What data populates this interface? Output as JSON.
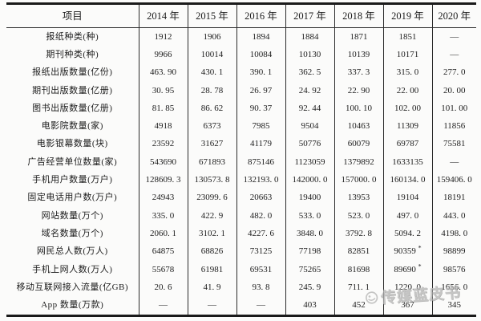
{
  "table": {
    "header": [
      "项目",
      "2014 年",
      "2015 年",
      "2016 年",
      "2017 年",
      "2018 年",
      "2019 年",
      "2020 年"
    ],
    "rows": [
      {
        "label": "报纸种类(种)",
        "values": [
          "1912",
          "1906",
          "1894",
          "1884",
          "1871",
          "1851",
          "—"
        ]
      },
      {
        "label": "期刊种类(种)",
        "values": [
          "9966",
          "10014",
          "10084",
          "10130",
          "10139",
          "10171",
          "—"
        ]
      },
      {
        "label": "报纸出版数量(亿份)",
        "values": [
          "463. 90",
          "430. 1",
          "390. 1",
          "362. 5",
          "337. 3",
          "315. 0",
          "277. 0"
        ]
      },
      {
        "label": "期刊出版数量(亿册)",
        "values": [
          "30. 95",
          "28. 78",
          "26. 97",
          "24. 92",
          "22. 90",
          "22. 00",
          "20. 00"
        ]
      },
      {
        "label": "图书出版数量(亿册)",
        "values": [
          "81. 85",
          "86. 62",
          "90. 37",
          "92. 44",
          "100. 10",
          "102. 00",
          "101. 00"
        ]
      },
      {
        "label": "电影院数量(家)",
        "values": [
          "4918",
          "6373",
          "7985",
          "9504",
          "10463",
          "11309",
          "11856"
        ]
      },
      {
        "label": "电影银幕数量(块)",
        "values": [
          "23592",
          "31627",
          "41179",
          "50776",
          "60079",
          "69787",
          "75581"
        ]
      },
      {
        "label": "广告经营单位数量(家)",
        "values": [
          "543690",
          "671893",
          "875146",
          "1123059",
          "1379892",
          "1633135",
          "—"
        ]
      },
      {
        "label": "手机用户数量(万户)",
        "values": [
          "128609. 3",
          "130573. 8",
          "132193. 0",
          "142000. 0",
          "157000. 0",
          "160134. 0",
          "159406. 0"
        ]
      },
      {
        "label": "固定电话用户数(万户)",
        "values": [
          "24943",
          "23099. 6",
          "20663",
          "19400",
          "13953",
          "19104",
          "18191"
        ]
      },
      {
        "label": "网站数量(万个)",
        "values": [
          "335. 0",
          "422. 9",
          "482. 0",
          "533. 0",
          "523. 0",
          "497. 0",
          "443. 0"
        ]
      },
      {
        "label": "域名数量(万个)",
        "values": [
          "2060. 1",
          "3102. 1",
          "4227. 6",
          "3848. 0",
          "3792. 8",
          "5094. 2",
          "4198. 0"
        ]
      },
      {
        "label": "网民总人数(万人)",
        "values": [
          "64875",
          "68826",
          "73125",
          "77198",
          "82851",
          "90359*",
          "98899"
        ]
      },
      {
        "label": "手机上网人数(万人)",
        "values": [
          "55678",
          "61981",
          "69531",
          "75265",
          "81698",
          "89690*",
          "98576"
        ]
      },
      {
        "label": "移动互联网接入流量(亿GB)",
        "values": [
          "20. 6",
          "41. 9",
          "93. 8",
          "245. 9",
          "711. 1",
          "1220. 0",
          "1656. 0"
        ]
      },
      {
        "label": "App 数量(万款)",
        "values": [
          "—",
          "—",
          "—",
          "403",
          "452",
          "367",
          "345"
        ]
      }
    ]
  },
  "watermark": {
    "text": "传媒蓝皮书",
    "color": "#b3b3b3"
  },
  "colors": {
    "ink": "#1c1c1c",
    "background": "#fbfbfa"
  }
}
